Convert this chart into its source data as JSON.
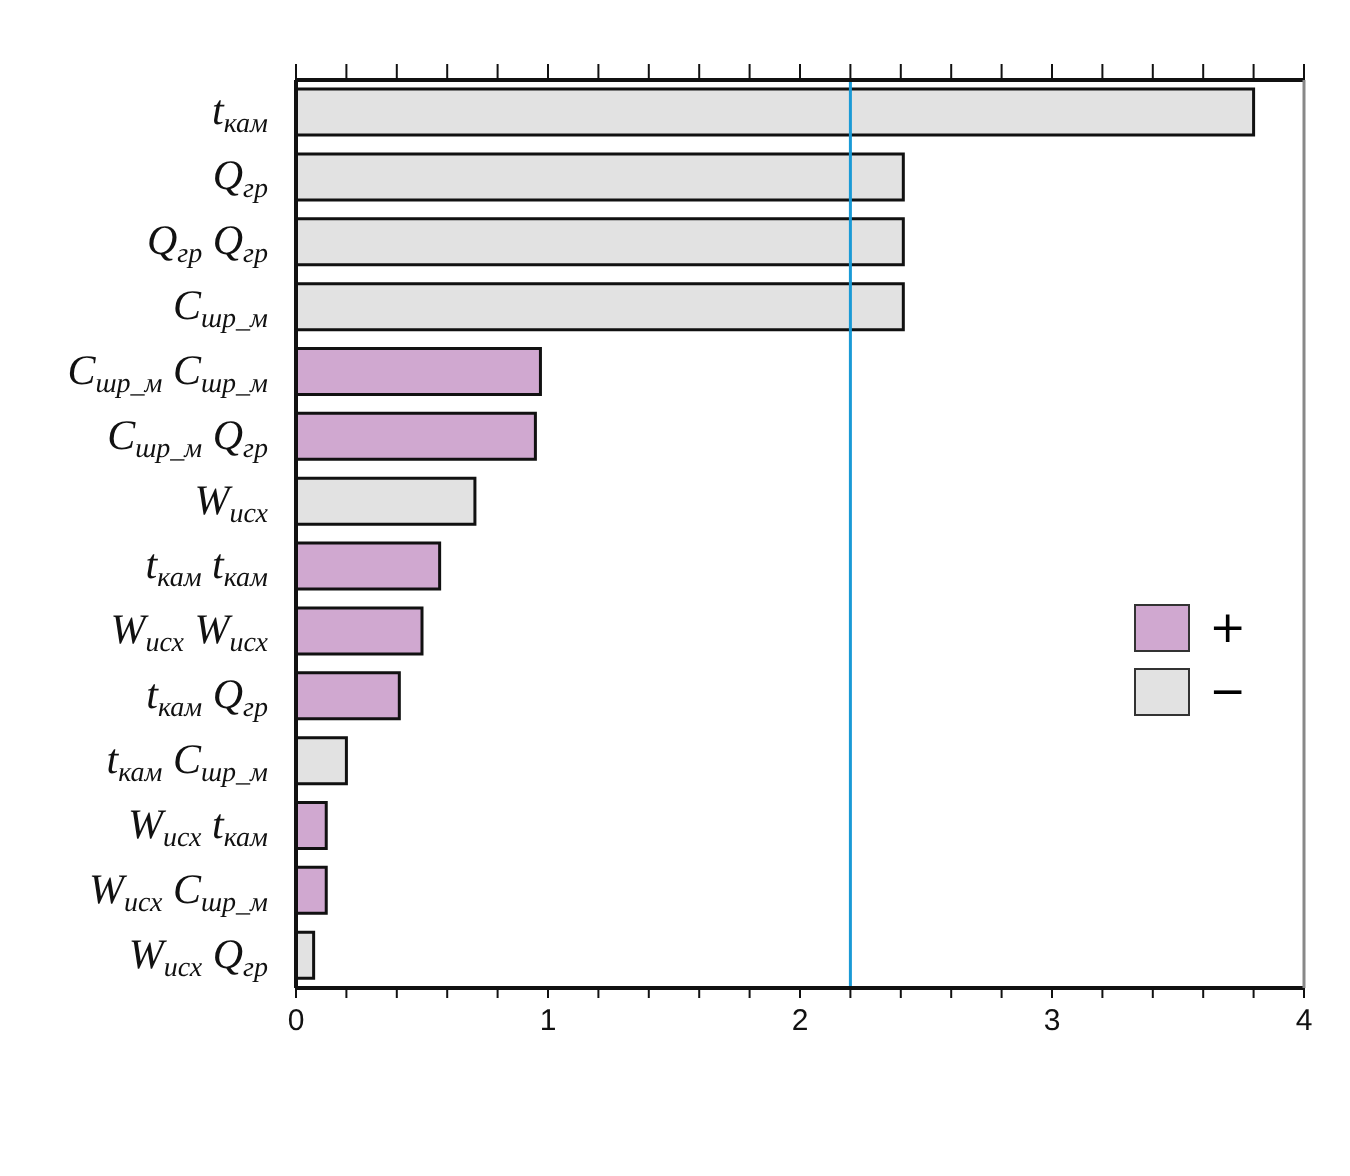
{
  "chart_data": {
    "type": "bar",
    "orientation": "horizontal",
    "stacked": true,
    "categories": [
      "t$_{кам}$",
      "Q$_{гр}$",
      "Q$_{гр}$ Q$_{гр}$",
      "C$_{шр_м}$",
      "C$_{шр_м}$ C$_{шр_м}$",
      "C$_{шр_м}$ Q$_{гр}$",
      "W$_{исх}$",
      "t$_{кам}$ t$_{кам}$",
      "W$_{исх}$ W$_{исх}$",
      "t$_{кам}$ Q$_{гр}$",
      "t$_{кам}$ C$_{шр_м}$",
      "W$_{исх}$ t$_{кам}$",
      "W$_{исх}$ C$_{шр_м}$",
      "W$_{исх}$ Q$_{гр}$"
    ],
    "series": [
      {
        "name": "+",
        "color": "#d0a8d0",
        "values": [
          null,
          null,
          null,
          null,
          0.97,
          0.95,
          null,
          0.57,
          0.5,
          0.41,
          null,
          0.12,
          0.12,
          null
        ]
      },
      {
        "name": "−",
        "color": "#e2e2e2",
        "values": [
          3.8,
          2.41,
          2.41,
          2.41,
          null,
          null,
          0.71,
          null,
          null,
          null,
          0.2,
          null,
          null,
          0.07
        ]
      }
    ],
    "xlim": [
      0,
      4
    ],
    "xticks": [
      0,
      {
        "value": 0.2,
        "label": null
      },
      {
        "value": 0.4,
        "label": null
      },
      {
        "value": 0.6,
        "label": null
      },
      {
        "value": 0.8,
        "label": null
      },
      1,
      {
        "value": 1.2,
        "label": null
      },
      {
        "value": 1.4,
        "label": null
      },
      {
        "value": 1.6,
        "label": null
      },
      {
        "value": 1.8,
        "label": null
      },
      2,
      {
        "value": 2.2,
        "label": null
      },
      {
        "value": 2.4,
        "label": null
      },
      {
        "value": 2.6,
        "label": null
      },
      {
        "value": 2.8,
        "label": null
      },
      3,
      {
        "value": 3.2,
        "label": null
      },
      {
        "value": 3.4,
        "label": null
      },
      {
        "value": 3.6,
        "label": null
      },
      {
        "value": 3.8,
        "label": null
      },
      4
    ],
    "ref_lines": [
      {
        "axis": "x",
        "value": 2.2,
        "color": "#1a9ad6"
      }
    ],
    "legend": "right"
  }
}
